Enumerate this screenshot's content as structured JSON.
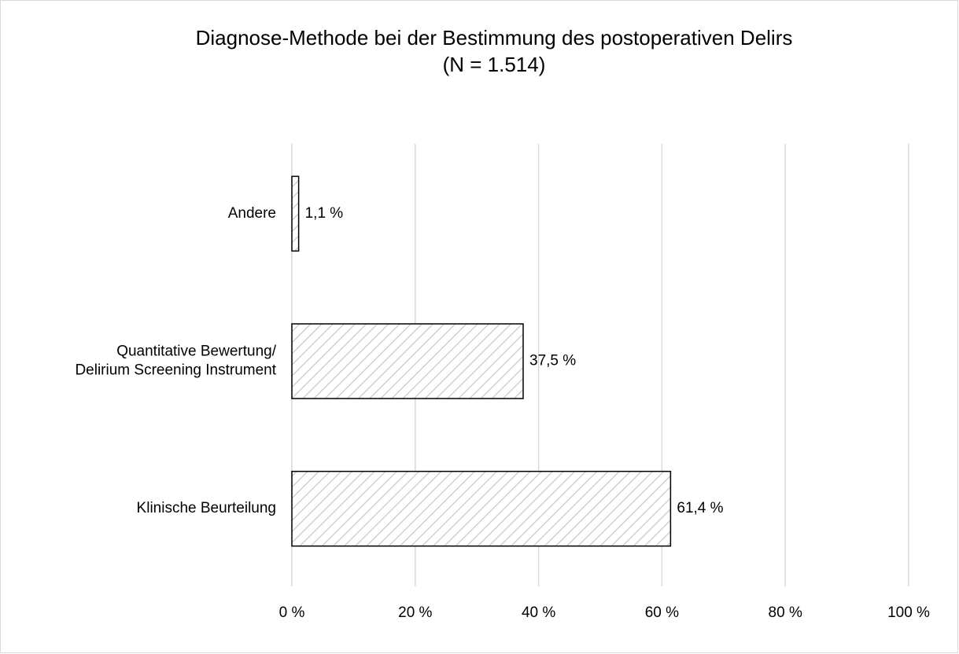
{
  "chart_data": {
    "type": "hbar",
    "title": "Diagnose-Methode bei der Bestimmung des postoperativen Delirs",
    "subtitle": "(N = 1.514)",
    "categories": [
      "Andere",
      "Quantitative Bewertung/\nDelirium Screening Instrument",
      "Klinische Beurteilung"
    ],
    "values": [
      1.1,
      37.5,
      61.4
    ],
    "value_labels": [
      "1,1 %",
      "37,5 %",
      "61,4 %"
    ],
    "xlim": [
      0,
      100
    ],
    "xticks": [
      {
        "value": 0,
        "label": "0 %"
      },
      {
        "value": 20,
        "label": "20 %"
      },
      {
        "value": 40,
        "label": "40 %"
      },
      {
        "value": 60,
        "label": "60 %"
      },
      {
        "value": 80,
        "label": "80 %"
      },
      {
        "value": 100,
        "label": "100 %"
      }
    ],
    "grid": true
  }
}
